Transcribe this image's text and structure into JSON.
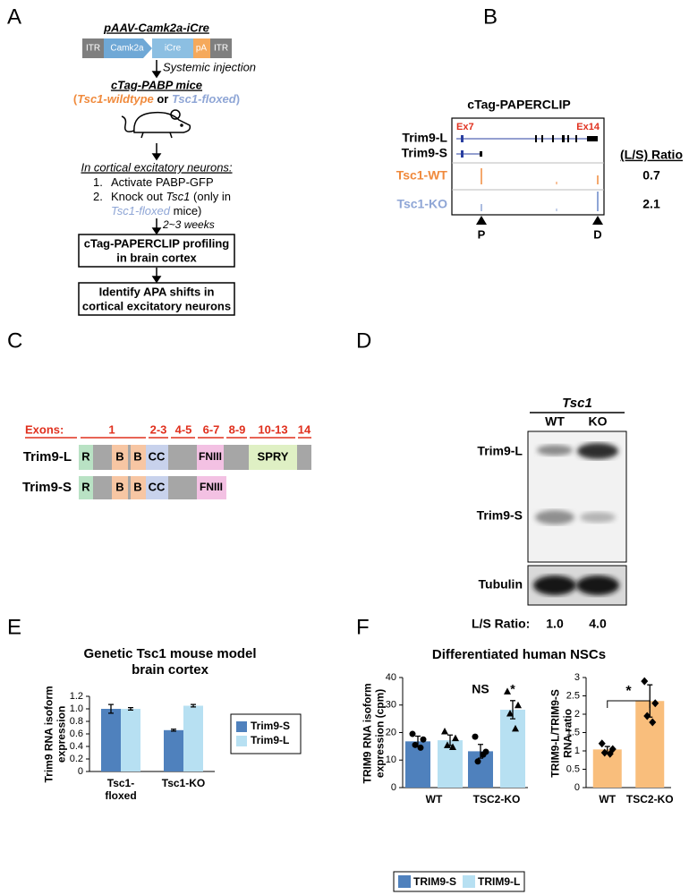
{
  "panel_a": {
    "label": "A",
    "construct": {
      "title": "pAAV-Camk2a-iCre",
      "parts": [
        "ITR",
        "Camk2a",
        "iCre",
        "pA",
        "ITR"
      ]
    },
    "step_injection": "Systemic injection",
    "mice": {
      "title": "cTag-PABP mice",
      "genotypes": [
        "(",
        "Tsc1-wildtype",
        " or ",
        "Tsc1-floxed",
        ")"
      ]
    },
    "neurons": {
      "title": "In cortical excitatory neurons:",
      "step1": [
        "1.",
        "Activate PABP-GFP"
      ],
      "step2": [
        "2.",
        "Knock out ",
        "Tsc1",
        " (only in",
        "Tsc1-floxed",
        " mice)"
      ]
    },
    "step_time": "2~3 weeks",
    "boxes": [
      [
        "cTag-PAPERCLIP profiling",
        "in brain cortex"
      ],
      [
        "Identify APA shifts in",
        "cortical excitatory neurons"
      ]
    ]
  },
  "panel_b": {
    "label": "B",
    "title": "cTag-PAPERCLIP",
    "tracks": [
      "Trim9-L",
      "Trim9-S",
      "Tsc1-WT",
      "Tsc1-KO"
    ],
    "exons": [
      "Ex7",
      "Ex14"
    ],
    "sites": [
      "P",
      "D"
    ],
    "ratio_header": "(L/S) Ratio",
    "ratios": [
      "0.7",
      "2.1"
    ]
  },
  "panel_c": {
    "label": "C",
    "exons_label": "Exons:",
    "exons": [
      "1",
      "2-3",
      "4-5",
      "6-7",
      "8-9",
      "10-13",
      "14"
    ],
    "isoforms": [
      "Trim9-L",
      "Trim9-S"
    ],
    "domains": [
      "R",
      "B",
      "B",
      "CC",
      "FNIII",
      "SPRY"
    ]
  },
  "panel_d": {
    "label": "D",
    "gene": "Tsc1",
    "lanes": [
      "WT",
      "KO"
    ],
    "bands": [
      "Trim9-L",
      "Trim9-S",
      "Tubulin"
    ],
    "ratio_label": "L/S Ratio:",
    "ratios": [
      "1.0",
      "4.0"
    ]
  },
  "panel_e": {
    "label": "E"
  },
  "panel_f": {
    "label": "F",
    "title": "Differentiated human NSCs"
  },
  "chart_data": [
    {
      "type": "bar",
      "title": "Genetic Tsc1 mouse model brain cortex",
      "y_label": "Trim9 RNA isoform expression",
      "categories": [
        "Tsc1-floxed",
        "Tsc1-KO"
      ],
      "series": [
        {
          "name": "Trim9-S",
          "color": "#4f81bd",
          "values": [
            1.0,
            0.66
          ],
          "errors": [
            0.07,
            0.015
          ]
        },
        {
          "name": "Trim9-L",
          "color": "#b7e0f2",
          "values": [
            1.0,
            1.05
          ],
          "errors": [
            0.02,
            0.02
          ]
        }
      ],
      "ylim": [
        0,
        1.2
      ],
      "yticks": [
        0,
        0.2,
        0.4,
        0.6,
        0.8,
        {
          "value": 1,
          "label": "1.0"
        },
        1.2
      ],
      "legend": "right"
    },
    {
      "type": "bar",
      "y_label": "TRIM9 RNA isoform expression (cpm)",
      "categories": [
        "WT",
        "TSC2-KO"
      ],
      "series": [
        {
          "name": "TRIM9-S",
          "color": "#4f81bd",
          "values": [
            16.8,
            13.2
          ],
          "errors": [
            1.9,
            2.5
          ],
          "points": [
            [
              19.5,
              17.5,
              15.5,
              14.5
            ],
            [
              18.5,
              13,
              9.5,
              12
            ]
          ]
        },
        {
          "name": "TRIM9-L",
          "color": "#b7e0f2",
          "values": [
            17.2,
            28.3
          ],
          "errors": [
            1.9,
            3.3
          ],
          "points": [
            [
              20.5,
              18,
              15.5,
              14.8
            ],
            [
              35,
              30,
              27,
              21.5
            ]
          ]
        }
      ],
      "annotations": [
        "NS",
        "*"
      ],
      "ylim": [
        0,
        40
      ],
      "yticks": [
        0,
        10,
        20,
        30,
        40
      ],
      "legend": "bottom"
    },
    {
      "type": "bar",
      "y_label": "TRIM9-L/TRIM9-S RNA ratio",
      "categories": [
        "WT",
        "TSC2-KO"
      ],
      "color": "#f9be7c",
      "values": [
        1.04,
        2.36
      ],
      "errors": [
        0.08,
        0.44
      ],
      "points": [
        [
          1.2,
          1.05,
          0.95,
          0.92
        ],
        [
          2.9,
          2.3,
          1.95,
          1.78
        ]
      ],
      "annotations": [
        "*"
      ],
      "ylim": [
        0,
        3
      ],
      "yticks": [
        0,
        0.5,
        1,
        1.5,
        2,
        2.5,
        3
      ]
    }
  ]
}
